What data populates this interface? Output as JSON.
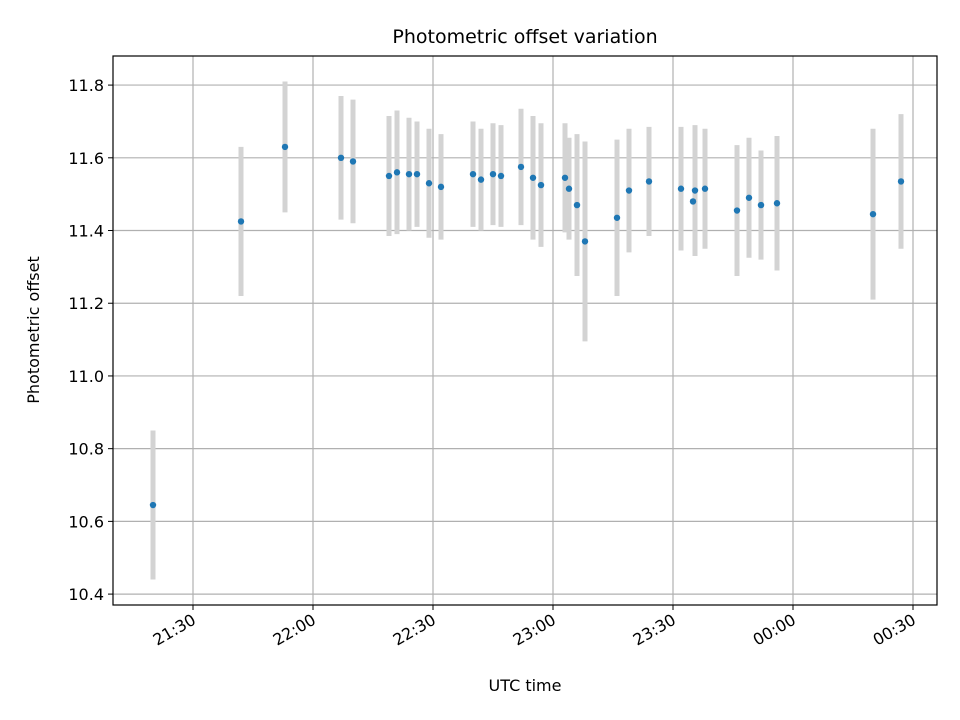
{
  "chart_data": {
    "type": "scatter",
    "title": "Photometric offset variation",
    "xlabel": "UTC time",
    "ylabel": "Photometric offset",
    "grid": true,
    "xlim": [
      "21:10",
      "00:36"
    ],
    "ylim": [
      10.37,
      11.88
    ],
    "x_ticks": [
      "21:30",
      "22:00",
      "22:30",
      "23:00",
      "23:30",
      "00:00",
      "00:30"
    ],
    "y_ticks": [
      10.4,
      10.6,
      10.8,
      11.0,
      11.2,
      11.4,
      11.6,
      11.8
    ],
    "colors": {
      "point": "#1f77b4",
      "errorbar": "#d3d3d3",
      "grid": "#b0b0b0"
    },
    "points": [
      {
        "x": "21:20",
        "y": 10.645,
        "err": 0.205
      },
      {
        "x": "21:42",
        "y": 11.425,
        "err": 0.205
      },
      {
        "x": "21:53",
        "y": 11.63,
        "err": 0.18
      },
      {
        "x": "22:07",
        "y": 11.6,
        "err": 0.17
      },
      {
        "x": "22:10",
        "y": 11.59,
        "err": 0.17
      },
      {
        "x": "22:19",
        "y": 11.55,
        "err": 0.165
      },
      {
        "x": "22:21",
        "y": 11.56,
        "err": 0.17
      },
      {
        "x": "22:24",
        "y": 11.555,
        "err": 0.155
      },
      {
        "x": "22:26",
        "y": 11.555,
        "err": 0.145
      },
      {
        "x": "22:29",
        "y": 11.53,
        "err": 0.15
      },
      {
        "x": "22:32",
        "y": 11.52,
        "err": 0.145
      },
      {
        "x": "22:40",
        "y": 11.555,
        "err": 0.145
      },
      {
        "x": "22:42",
        "y": 11.54,
        "err": 0.14
      },
      {
        "x": "22:45",
        "y": 11.555,
        "err": 0.14
      },
      {
        "x": "22:47",
        "y": 11.55,
        "err": 0.14
      },
      {
        "x": "22:52",
        "y": 11.575,
        "err": 0.16
      },
      {
        "x": "22:55",
        "y": 11.545,
        "err": 0.17
      },
      {
        "x": "22:57",
        "y": 11.525,
        "err": 0.17
      },
      {
        "x": "23:03",
        "y": 11.545,
        "err": 0.15
      },
      {
        "x": "23:04",
        "y": 11.515,
        "err": 0.14
      },
      {
        "x": "23:06",
        "y": 11.47,
        "err": 0.195
      },
      {
        "x": "23:08",
        "y": 11.37,
        "err": 0.275
      },
      {
        "x": "23:16",
        "y": 11.435,
        "err": 0.215
      },
      {
        "x": "23:19",
        "y": 11.51,
        "err": 0.17
      },
      {
        "x": "23:24",
        "y": 11.535,
        "err": 0.15
      },
      {
        "x": "23:32",
        "y": 11.515,
        "err": 0.17
      },
      {
        "x": "23:35",
        "y": 11.48,
        "err": 0.0
      },
      {
        "x": "23:35.5",
        "y": 11.51,
        "err": 0.18
      },
      {
        "x": "23:38",
        "y": 11.515,
        "err": 0.165
      },
      {
        "x": "23:46",
        "y": 11.455,
        "err": 0.18
      },
      {
        "x": "23:49",
        "y": 11.49,
        "err": 0.165
      },
      {
        "x": "23:52",
        "y": 11.47,
        "err": 0.15
      },
      {
        "x": "23:56",
        "y": 11.475,
        "err": 0.185
      },
      {
        "x": "00:20",
        "y": 11.445,
        "err": 0.235
      },
      {
        "x": "00:27",
        "y": 11.535,
        "err": 0.185
      }
    ]
  }
}
